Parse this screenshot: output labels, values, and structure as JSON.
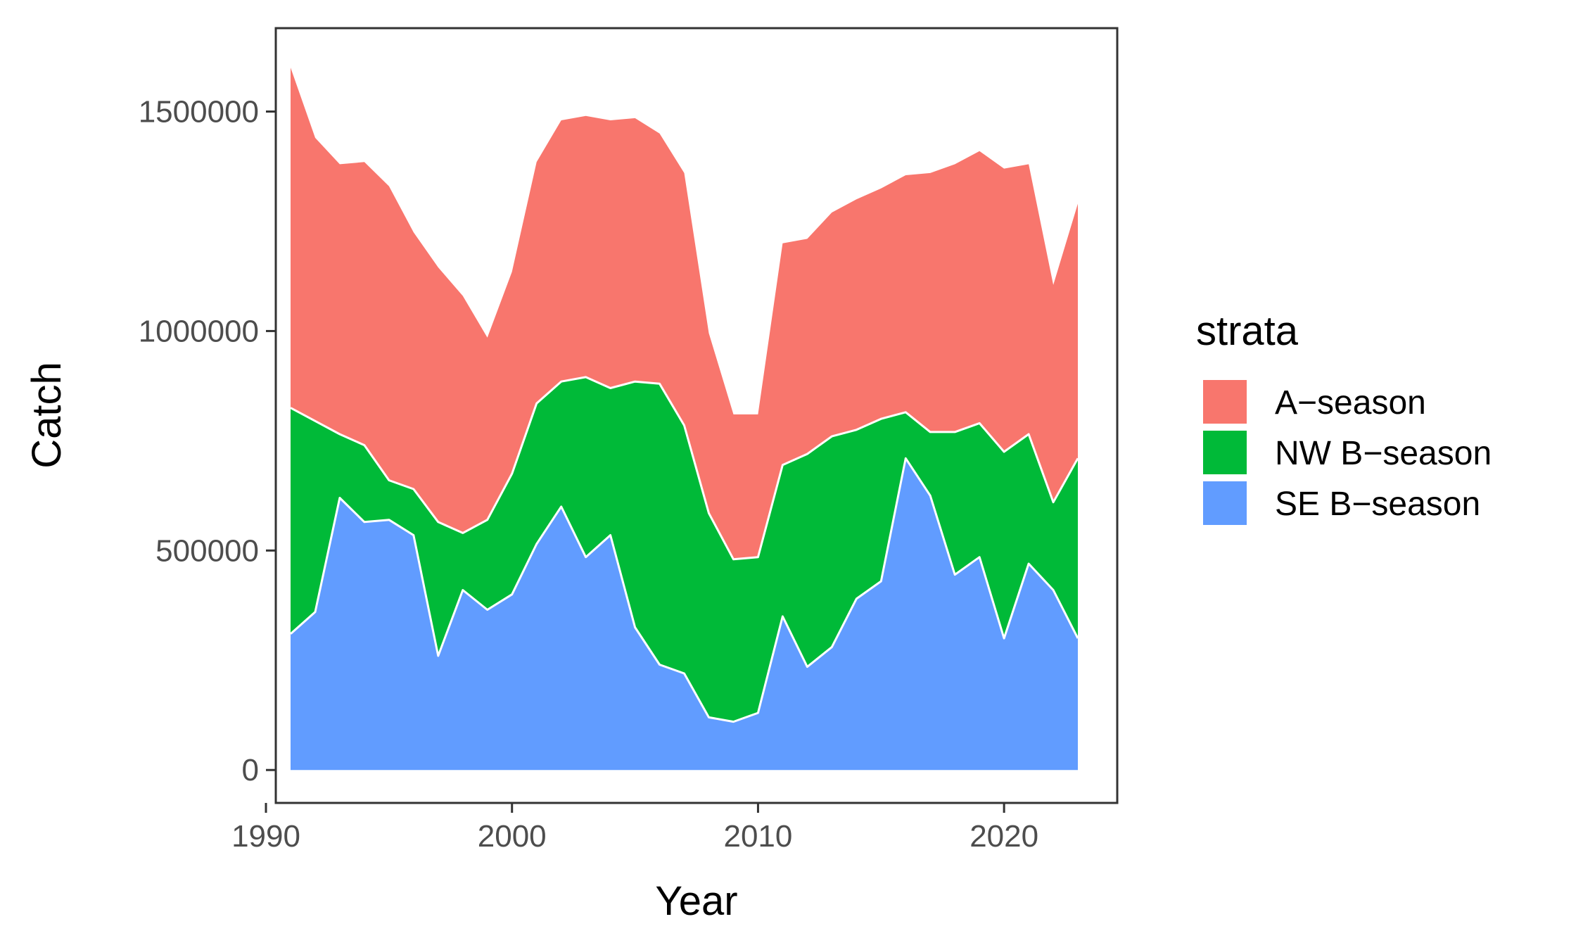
{
  "chart_data": {
    "type": "area",
    "stacked": true,
    "xlabel": "Year",
    "ylabel": "Catch",
    "xlim": [
      1990.4,
      2024.6
    ],
    "ylim": [
      -75000,
      1690000
    ],
    "x_ticks": [
      1990,
      2000,
      2010,
      2020
    ],
    "y_ticks": [
      0,
      500000,
      1000000,
      1500000
    ],
    "grid": false,
    "legend": {
      "title": "strata",
      "position": "right",
      "entries": [
        "A−season",
        "NW B−season",
        "SE B−season"
      ]
    },
    "colors": {
      "A-season": "#F8766D",
      "NW B-season": "#00BA38",
      "SE B-season": "#619CFF"
    },
    "x": [
      1991,
      1992,
      1993,
      1994,
      1995,
      1996,
      1997,
      1998,
      1999,
      2000,
      2001,
      2002,
      2003,
      2004,
      2005,
      2006,
      2007,
      2008,
      2009,
      2010,
      2011,
      2012,
      2013,
      2014,
      2015,
      2016,
      2017,
      2018,
      2019,
      2020,
      2021,
      2022,
      2023
    ],
    "series": [
      {
        "name": "SE B−season",
        "values": [
          310000,
          360000,
          620000,
          565000,
          570000,
          535000,
          260000,
          410000,
          365000,
          400000,
          515000,
          600000,
          485000,
          535000,
          325000,
          240000,
          220000,
          120000,
          110000,
          130000,
          350000,
          235000,
          280000,
          390000,
          430000,
          710000,
          625000,
          445000,
          485000,
          300000,
          470000,
          410000,
          300000
        ]
      },
      {
        "name": "NW B−season",
        "values": [
          515000,
          435000,
          145000,
          175000,
          90000,
          105000,
          305000,
          130000,
          205000,
          275000,
          320000,
          285000,
          410000,
          335000,
          560000,
          640000,
          565000,
          465000,
          370000,
          355000,
          345000,
          485000,
          480000,
          385000,
          370000,
          105000,
          145000,
          325000,
          305000,
          425000,
          295000,
          200000,
          410000
        ]
      },
      {
        "name": "A−season",
        "values": [
          775000,
          645000,
          615000,
          645000,
          670000,
          585000,
          580000,
          540000,
          415000,
          460000,
          550000,
          595000,
          595000,
          610000,
          600000,
          570000,
          575000,
          410000,
          330000,
          325000,
          505000,
          490000,
          510000,
          525000,
          525000,
          540000,
          590000,
          610000,
          620000,
          645000,
          615000,
          495000,
          580000
        ]
      }
    ]
  }
}
